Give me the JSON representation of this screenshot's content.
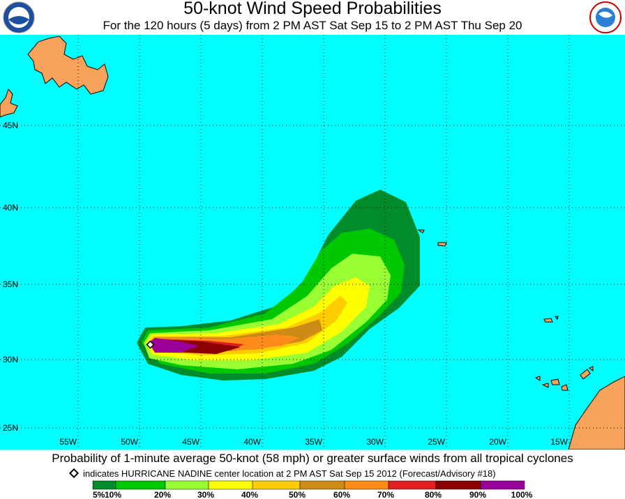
{
  "header": {
    "title": "50-knot Wind Speed Probabilities",
    "subtitle": "For the 120 hours (5 days) from 2 PM AST Sat Sep 15 to 2 PM AST Thu Sep 20"
  },
  "map": {
    "latitude_labels": [
      "45N",
      "40N",
      "35N",
      "30N",
      "25N"
    ],
    "longitude_labels": [
      "55W",
      "50W",
      "45W",
      "40W",
      "35W",
      "30W",
      "25W",
      "20W",
      "15W"
    ]
  },
  "footer": {
    "caption": "Probability of 1-minute average 50-knot (58 mph) or greater surface winds from all tropical cyclones",
    "marker_note": "indicates HURRICANE NADINE center location at 2 PM AST Sat Sep 15 2012 (Forecast/Advisory #18)",
    "scale_labels": [
      "5%",
      "10%",
      "20%",
      "30%",
      "40%",
      "50%",
      "60%",
      "70%",
      "80%",
      "90%",
      "100%"
    ]
  }
}
